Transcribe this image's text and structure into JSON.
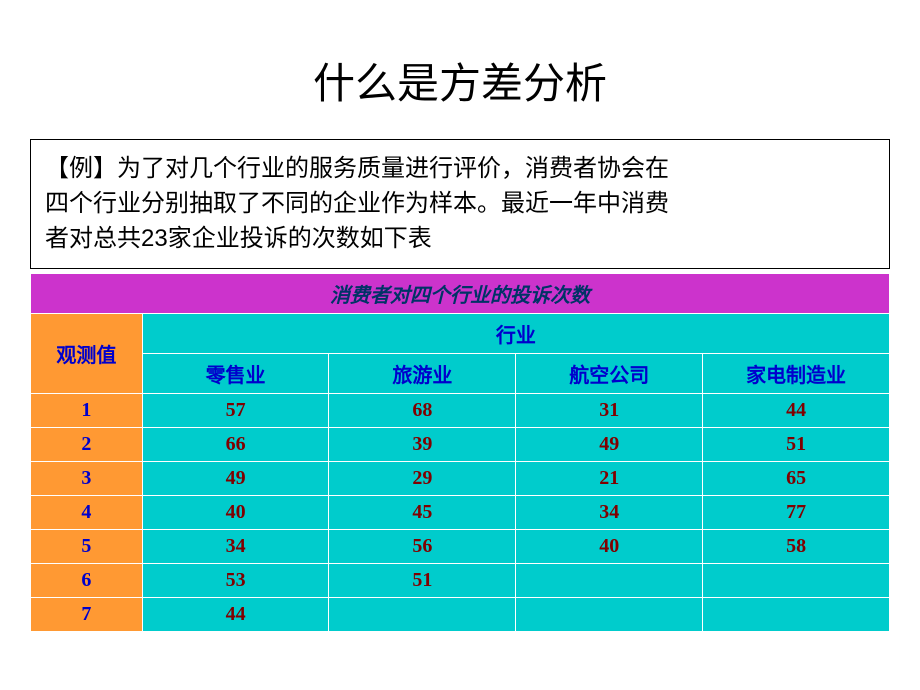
{
  "title": "什么是方差分析",
  "example": {
    "tag": "【例】",
    "line1": "为了对几个行业的服务质量进行评价，消费者协会在",
    "line2": "四个行业分别抽取了不同的企业作为样本。最近一年中消费",
    "line3a": "者对总共",
    "count": "23",
    "line3b": "家企业投诉的次数如下表"
  },
  "table": {
    "top_header": "消费者对四个行业的投诉次数",
    "group_header": "行业",
    "obs_header": "观测值",
    "columns": [
      "零售业",
      "旅游业",
      "航空公司",
      "家电制造业"
    ],
    "obs_labels": [
      "1",
      "2",
      "3",
      "4",
      "5",
      "6",
      "7"
    ],
    "data": [
      [
        "57",
        "68",
        "31",
        "44"
      ],
      [
        "66",
        "39",
        "49",
        "51"
      ],
      [
        "49",
        "29",
        "21",
        "65"
      ],
      [
        "40",
        "45",
        "34",
        "77"
      ],
      [
        "34",
        "56",
        "40",
        "58"
      ],
      [
        "53",
        "51",
        "",
        ""
      ],
      [
        "44",
        "",
        "",
        ""
      ]
    ],
    "colors": {
      "top_header_bg": "#cc33cc",
      "top_header_text": "#003366",
      "group_bg": "#00cccc",
      "group_text": "#0000cc",
      "obs_bg": "#ff9933",
      "obs_text": "#0000cc",
      "data_bg": "#00cccc",
      "data_text": "#800000",
      "border": "#ffffff"
    },
    "font": {
      "header_size_pt": 20,
      "header_weight": "bold",
      "header_style_top": "italic",
      "data_family": "Times New Roman"
    }
  }
}
